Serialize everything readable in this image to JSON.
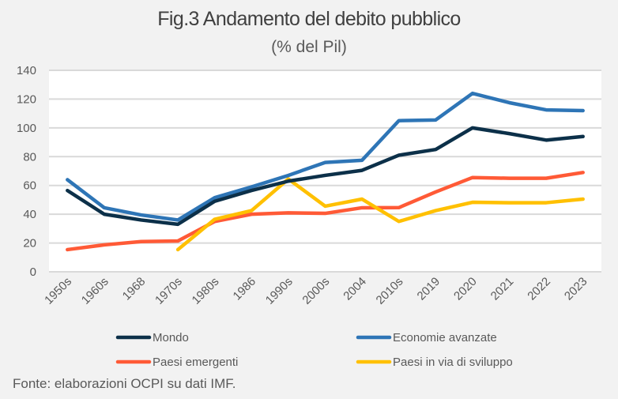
{
  "chart_data": {
    "type": "line",
    "title": "Fig.3 Andamento del debito pubblico",
    "subtitle": "(% del Pil)",
    "xlabel": "",
    "ylabel": "",
    "ylim": [
      0,
      140
    ],
    "yticks": [
      0,
      20,
      40,
      60,
      80,
      100,
      120,
      140
    ],
    "grid": true,
    "legend_position": "bottom",
    "categories": [
      "1950s",
      "1960s",
      "1968",
      "1970s",
      "1980s",
      "1986",
      "1990s",
      "2000s",
      "2004",
      "2010s",
      "2019",
      "2020",
      "2021",
      "2022",
      "2023"
    ],
    "series": [
      {
        "name": "Mondo",
        "color": "#0c3049",
        "values": [
          56.5,
          40,
          36,
          33,
          49,
          56.5,
          63,
          67,
          70.5,
          81,
          85,
          100,
          96,
          91.5,
          94
        ]
      },
      {
        "name": "Economie avanzate",
        "color": "#2e75b6",
        "values": [
          64,
          44.5,
          39.5,
          36,
          51.5,
          59,
          67,
          76,
          77.5,
          105,
          105.5,
          124,
          117.5,
          112.5,
          112
        ]
      },
      {
        "name": "Paesi emergenti",
        "color": "#ff5a36",
        "values": [
          15.4,
          18.7,
          21,
          21.4,
          35,
          40,
          41,
          40.6,
          44.5,
          44.6,
          55.5,
          65.5,
          65,
          65,
          69
        ]
      },
      {
        "name": "Paesi in via di sviluppo",
        "color": "#ffc000",
        "values": [
          null,
          null,
          null,
          15.4,
          36.5,
          42.5,
          64.5,
          45.6,
          50.5,
          35,
          42.5,
          48.3,
          48,
          48,
          50.5
        ]
      }
    ],
    "source": "Fonte: elaborazioni OCPI su dati IMF."
  }
}
